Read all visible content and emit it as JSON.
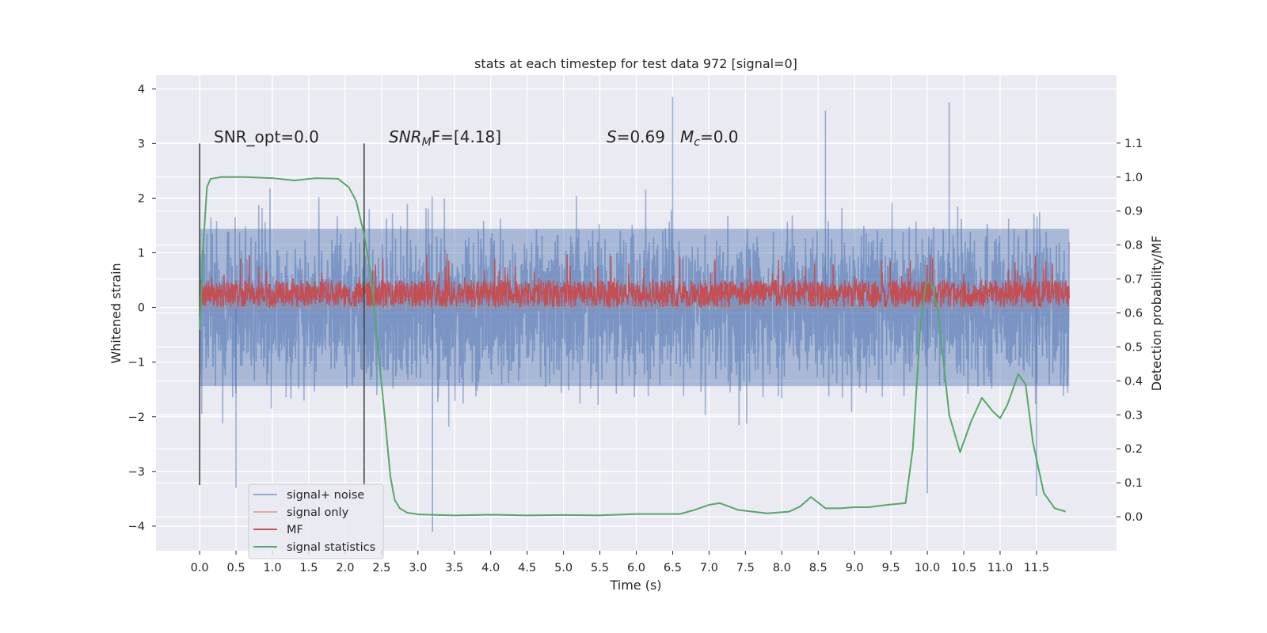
{
  "chart_data": {
    "type": "line",
    "title": "stats at each timestep for test data 972 [signal=0]",
    "xlabel": "Time (s)",
    "ylabel_left": "Whitened strain",
    "ylabel_right": "Detection probability/MF",
    "xlim": [
      -0.6,
      12.6
    ],
    "ylim_left": [
      -4.45,
      4.25
    ],
    "ylim_right": [
      -0.1,
      1.3
    ],
    "x_ticks": [
      0.0,
      0.5,
      1.0,
      1.5,
      2.0,
      2.5,
      3.0,
      3.5,
      4.0,
      4.5,
      5.0,
      5.5,
      6.0,
      6.5,
      7.0,
      7.5,
      8.0,
      8.5,
      9.0,
      9.5,
      10.0,
      10.5,
      11.0,
      11.5
    ],
    "x_tick_labels": [
      "0.0",
      "0.5",
      "1.0",
      "1.5",
      "2.0",
      "2.5",
      "3.0",
      "3.5",
      "4.0",
      "4.5",
      "5.0",
      "5.5",
      "6.0",
      "6.5",
      "7.0",
      "7.5",
      "8.0",
      "8.5",
      "9.0",
      "9.5",
      "10.0",
      "10.5",
      "11.0",
      "11.5"
    ],
    "y_left_ticks": [
      4,
      3,
      2,
      1,
      0,
      -1,
      -2,
      -3,
      -4
    ],
    "y_left_tick_labels": [
      "4",
      "3",
      "2",
      "1",
      "0",
      "−1",
      "−2",
      "−3",
      "−4"
    ],
    "y_right_ticks": [
      1.1,
      1.0,
      0.9,
      0.8,
      0.7,
      0.6,
      0.5,
      0.4,
      0.3,
      0.2,
      0.1,
      0.0
    ],
    "y_right_tick_labels": [
      "1.1",
      "1.0",
      "0.9",
      "0.8",
      "0.7",
      "0.6",
      "0.5",
      "0.4",
      "0.3",
      "0.2",
      "0.1",
      "0.0"
    ],
    "grid": true,
    "legend_position": "lower-left",
    "series": [
      {
        "name": "signal+ noise",
        "color": "#4c72b0",
        "axis": "left",
        "kind": "noise",
        "duration": 11.95,
        "envelope": 1.8,
        "extremes": [
          [
            6.5,
            3.85
          ],
          [
            10.3,
            3.75
          ],
          [
            8.6,
            3.6
          ],
          [
            3.2,
            -4.1
          ],
          [
            11.5,
            -3.45
          ],
          [
            10.0,
            -3.4
          ],
          [
            0.5,
            -3.3
          ]
        ]
      },
      {
        "name": "signal only",
        "color": "#dd8452",
        "axis": "left",
        "kind": "flat",
        "value": 0.0
      },
      {
        "name": "MF",
        "color": "#c44e52",
        "axis": "left",
        "kind": "noise",
        "duration": 11.95,
        "band": [
          0.0,
          0.5
        ],
        "peak": 1.0
      },
      {
        "name": "signal statistics",
        "color": "#55a868",
        "axis": "right",
        "kind": "curve",
        "x": [
          0.0,
          0.05,
          0.1,
          0.15,
          0.3,
          0.6,
          1.0,
          1.3,
          1.6,
          1.9,
          2.05,
          2.15,
          2.25,
          2.35,
          2.45,
          2.55,
          2.62,
          2.68,
          2.75,
          2.85,
          3.0,
          3.5,
          4.0,
          4.5,
          5.0,
          5.5,
          6.0,
          6.6,
          6.8,
          7.0,
          7.15,
          7.4,
          7.8,
          8.1,
          8.25,
          8.4,
          8.6,
          8.8,
          9.0,
          9.2,
          9.45,
          9.7,
          9.8,
          9.9,
          9.98,
          10.05,
          10.15,
          10.3,
          10.45,
          10.6,
          10.75,
          10.9,
          11.0,
          11.1,
          11.25,
          11.35,
          11.45,
          11.6,
          11.75,
          11.9
        ],
        "y": [
          0.55,
          0.8,
          0.97,
          0.995,
          1.0,
          1.0,
          0.997,
          0.99,
          0.997,
          0.995,
          0.97,
          0.93,
          0.84,
          0.72,
          0.5,
          0.28,
          0.12,
          0.05,
          0.025,
          0.012,
          0.007,
          0.004,
          0.006,
          0.004,
          0.005,
          0.004,
          0.008,
          0.008,
          0.02,
          0.035,
          0.04,
          0.02,
          0.01,
          0.015,
          0.03,
          0.058,
          0.025,
          0.025,
          0.028,
          0.028,
          0.035,
          0.04,
          0.2,
          0.55,
          0.69,
          0.69,
          0.6,
          0.3,
          0.19,
          0.28,
          0.35,
          0.31,
          0.29,
          0.33,
          0.42,
          0.39,
          0.22,
          0.07,
          0.025,
          0.015
        ]
      }
    ],
    "vlines": [
      0.0,
      2.26
    ],
    "annotations": [
      "SNR_opt=0.0",
      "SNR",
      "M",
      "F=[4.18]",
      "S",
      "=0.69",
      "M",
      "c",
      "=0.0"
    ]
  }
}
